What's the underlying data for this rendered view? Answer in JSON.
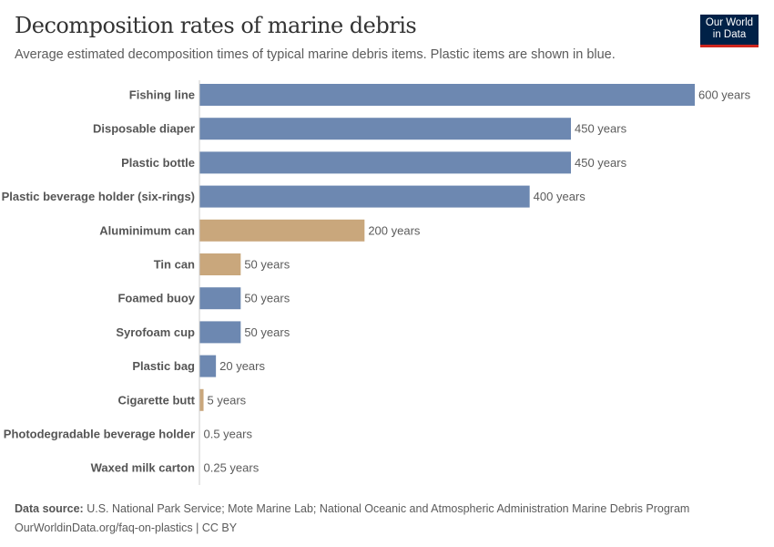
{
  "title": "Decomposition rates of marine debris",
  "subtitle": "Average estimated decomposition times of typical marine debris items. Plastic items are shown in blue.",
  "logo": {
    "line1": "Our World",
    "line2": "in Data"
  },
  "colors": {
    "plastic": "#6d88b1",
    "other": "#c9a77c"
  },
  "chart_data": {
    "type": "bar",
    "orientation": "horizontal",
    "unit": "years",
    "xlim": [
      0,
      600
    ],
    "categories": [
      "Fishing line",
      "Disposable diaper",
      "Plastic bottle",
      "Plastic beverage holder (six-rings)",
      "Aluminimum can",
      "Tin can",
      "Foamed buoy",
      "Syrofoam cup",
      "Plastic bag",
      "Cigarette butt",
      "Photodegradable beverage holder",
      "Waxed milk carton"
    ],
    "values": [
      600,
      450,
      450,
      400,
      200,
      50,
      50,
      50,
      20,
      5,
      0.5,
      0.25
    ],
    "labels": [
      "600 years",
      "450 years",
      "450 years",
      "400 years",
      "200 years",
      "50 years",
      "50 years",
      "50 years",
      "20 years",
      "5 years",
      "0.5 years",
      "0.25 years"
    ],
    "plastic": [
      true,
      true,
      true,
      true,
      false,
      false,
      true,
      true,
      true,
      false,
      true,
      false
    ]
  },
  "footer": {
    "source_label": "Data source:",
    "source": "U.S. National Park Service; Mote Marine Lab; National Oceanic and Atmospheric Administration Marine Debris Program",
    "credit": "OurWorldinData.org/faq-on-plastics | CC BY"
  }
}
